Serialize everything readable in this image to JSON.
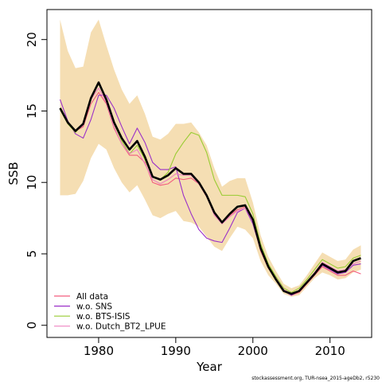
{
  "chart_data": {
    "type": "line",
    "xlabel": "Year",
    "ylabel": "SSB",
    "xlim": [
      1973.3,
      2015.4
    ],
    "ylim": [
      -0.85,
      22.1
    ],
    "xticks": [
      1980,
      1990,
      2000,
      2010
    ],
    "yticks": [
      0,
      5,
      10,
      15,
      20
    ],
    "x": [
      1975,
      1976,
      1977,
      1978,
      1979,
      1980,
      1981,
      1982,
      1983,
      1984,
      1985,
      1986,
      1987,
      1988,
      1989,
      1990,
      1991,
      1992,
      1993,
      1994,
      1995,
      1996,
      1997,
      1998,
      1999,
      2000,
      2001,
      2002,
      2003,
      2004,
      2005,
      2006,
      2007,
      2008,
      2009,
      2010,
      2011,
      2012,
      2013,
      2014
    ],
    "confidence_band": {
      "upper": [
        21.4,
        19.2,
        18.0,
        18.1,
        20.5,
        21.4,
        19.6,
        17.9,
        16.5,
        15.5,
        16.1,
        14.8,
        13.2,
        13.0,
        13.4,
        14.1,
        14.1,
        14.2,
        13.5,
        12.6,
        11.0,
        9.7,
        10.1,
        10.3,
        10.3,
        8.6,
        6.3,
        4.8,
        3.8,
        2.9,
        2.6,
        2.8,
        3.5,
        4.3,
        5.1,
        4.8,
        4.5,
        4.6,
        5.3,
        5.6
      ],
      "lower": [
        9.1,
        9.1,
        9.2,
        10.1,
        11.7,
        12.7,
        12.3,
        11.0,
        10.0,
        9.3,
        9.8,
        8.8,
        7.7,
        7.5,
        7.8,
        8.0,
        7.3,
        7.2,
        6.9,
        6.2,
        5.5,
        5.2,
        6.1,
        6.9,
        6.7,
        6.1,
        4.5,
        3.5,
        2.9,
        2.2,
        2.0,
        2.1,
        2.7,
        3.3,
        3.7,
        3.5,
        3.2,
        3.3,
        3.7,
        3.9
      ],
      "color": "#f5deb3"
    },
    "series": [
      {
        "name": "All data",
        "color": "#f25c7e",
        "values": [
          15.2,
          14.1,
          13.6,
          13.9,
          15.5,
          16.3,
          15.5,
          13.8,
          12.7,
          11.9,
          11.9,
          11.4,
          10.0,
          9.8,
          9.9,
          10.3,
          10.2,
          10.3,
          9.9,
          9.0,
          7.8,
          7.1,
          7.7,
          8.1,
          8.3,
          7.3,
          5.2,
          4.0,
          3.2,
          2.4,
          2.1,
          2.3,
          2.9,
          3.5,
          4.1,
          3.8,
          3.5,
          3.5,
          3.8,
          3.6
        ]
      },
      {
        "name": "w.o. SNS",
        "color": "#9b30c8",
        "values": [
          15.8,
          14.3,
          13.4,
          13.1,
          14.4,
          16.1,
          16.1,
          15.2,
          13.9,
          12.7,
          13.8,
          12.8,
          11.4,
          10.9,
          10.9,
          11.1,
          9.1,
          7.8,
          6.7,
          6.1,
          5.9,
          5.8,
          6.8,
          7.9,
          8.2,
          7.1,
          5.3,
          4.1,
          3.2,
          2.4,
          2.1,
          2.4,
          3.0,
          3.6,
          4.2,
          3.9,
          3.6,
          3.7,
          4.2,
          4.3
        ]
      },
      {
        "name": "w.o. BTS-ISIS",
        "color": "#99cc33",
        "values": [
          15.1,
          14.1,
          13.5,
          14.1,
          15.9,
          16.9,
          15.8,
          14.1,
          12.9,
          12.0,
          12.6,
          11.6,
          10.4,
          10.2,
          10.7,
          12.0,
          12.8,
          13.5,
          13.3,
          12.1,
          10.2,
          9.1,
          9.1,
          9.1,
          9.0,
          7.8,
          5.7,
          4.3,
          3.4,
          2.6,
          2.3,
          2.6,
          3.2,
          3.9,
          4.6,
          4.3,
          4.0,
          4.1,
          4.7,
          4.9
        ]
      },
      {
        "name": "w.o. Dutch_BT2_LPUE",
        "color": "#ee82c0",
        "values": [
          15.2,
          14.2,
          13.6,
          14.0,
          15.8,
          16.6,
          15.6,
          13.9,
          12.7,
          12.0,
          12.3,
          11.3,
          10.2,
          9.9,
          10.2,
          10.6,
          10.5,
          10.5,
          9.9,
          9.1,
          7.7,
          7.1,
          7.6,
          8.0,
          8.2,
          7.4,
          5.5,
          4.1,
          3.3,
          2.5,
          2.2,
          2.4,
          3.0,
          3.7,
          4.4,
          4.1,
          3.8,
          3.9,
          4.3,
          4.5
        ]
      },
      {
        "name": "",
        "color": "#000000",
        "values": [
          15.2,
          14.2,
          13.6,
          14.1,
          15.9,
          17.0,
          15.8,
          14.2,
          13.1,
          12.3,
          12.9,
          11.8,
          10.4,
          10.2,
          10.5,
          11.0,
          10.6,
          10.6,
          10.0,
          9.1,
          7.9,
          7.2,
          7.8,
          8.3,
          8.4,
          7.4,
          5.4,
          4.1,
          3.2,
          2.4,
          2.2,
          2.4,
          3.0,
          3.6,
          4.3,
          4.0,
          3.7,
          3.8,
          4.5,
          4.7
        ]
      }
    ],
    "legend": {
      "position": "bottom-left",
      "entries": [
        {
          "label": "All data",
          "color": "#f25c7e"
        },
        {
          "label": "w.o. SNS",
          "color": "#9b30c8"
        },
        {
          "label": "w.o. BTS-ISIS",
          "color": "#99cc33"
        },
        {
          "label": "w.o. Dutch_BT2_LPUE",
          "color": "#ee82c0"
        }
      ]
    },
    "footer": "stockassessment.org, TUR-nsea_2015-ageDb2, r5230"
  }
}
